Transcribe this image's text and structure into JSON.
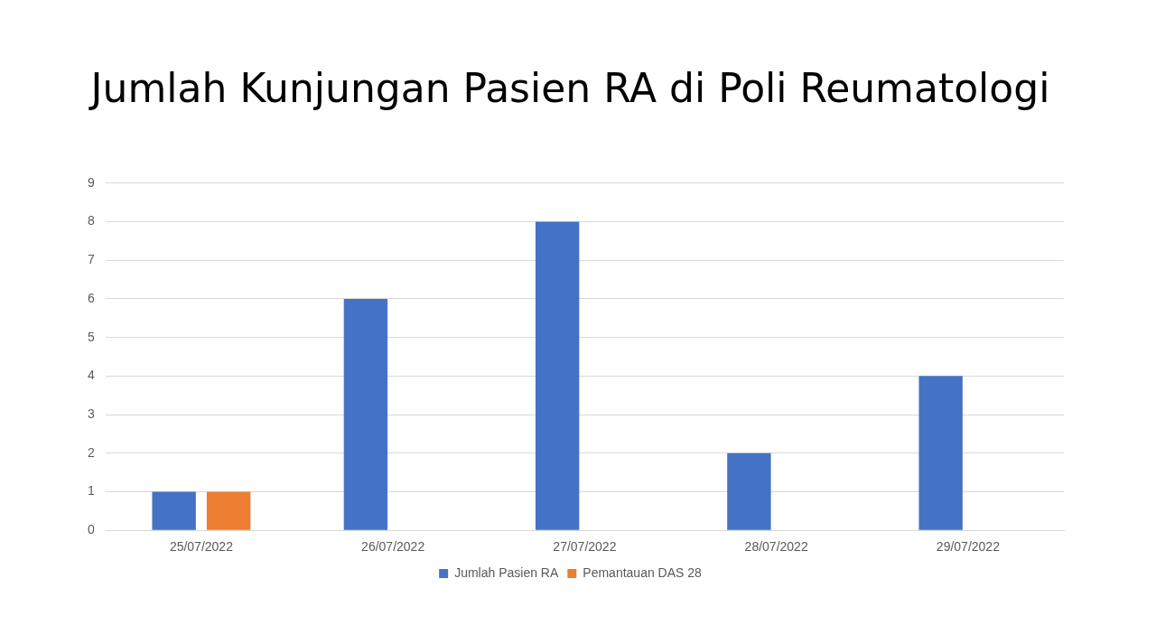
{
  "chart_data": {
    "type": "bar",
    "title": "Jumlah Kunjungan Pasien RA di Poli Reumatologi",
    "categories": [
      "25/07/2022",
      "26/07/2022",
      "27/07/2022",
      "28/07/2022",
      "29/07/2022"
    ],
    "series": [
      {
        "name": "Jumlah Pasien RA",
        "color": "#4472c4",
        "values": [
          1,
          6,
          8,
          2,
          4
        ]
      },
      {
        "name": "Pemantauan DAS 28",
        "color": "#ed7d31",
        "values": [
          1,
          0,
          0,
          0,
          0
        ]
      }
    ],
    "ylim": [
      0,
      9
    ],
    "yticks": [
      0,
      1,
      2,
      3,
      4,
      5,
      6,
      7,
      8,
      9
    ],
    "grid": "y",
    "legend": "bottom"
  }
}
